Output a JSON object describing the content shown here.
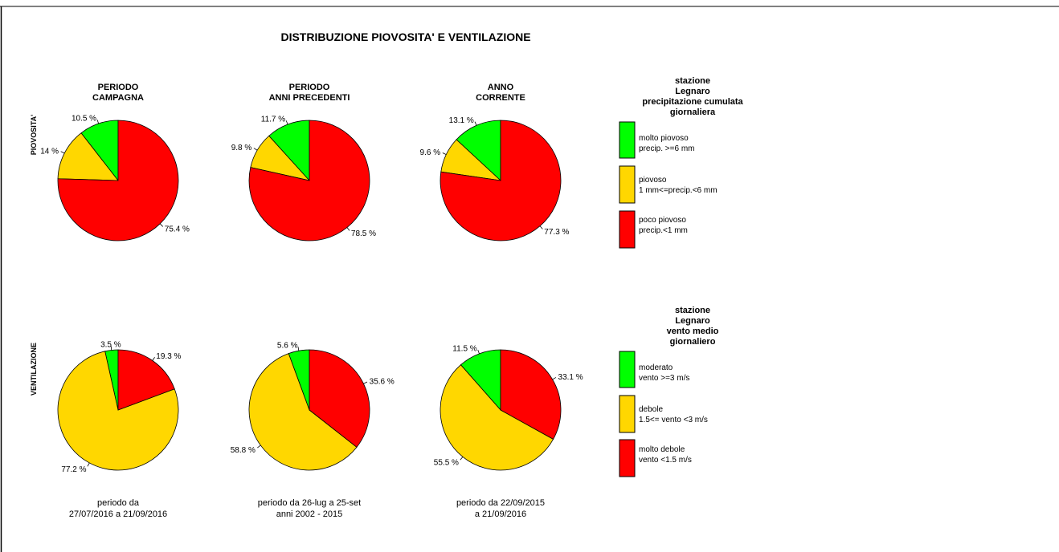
{
  "title": "DISTRIBUZIONE PIOVOSITA' E VENTILAZIONE",
  "columns": [
    {
      "line1": "PERIODO",
      "line2": "CAMPAGNA"
    },
    {
      "line1": "PERIODO",
      "line2": "ANNI PRECEDENTI"
    },
    {
      "line1": "ANNO",
      "line2": "CORRENTE"
    }
  ],
  "row_labels": {
    "rain": "PIOVOSITA'",
    "wind": "VENTILAZIONE"
  },
  "footers": [
    {
      "line1": "periodo da",
      "line2": "27/07/2016  a  21/09/2016"
    },
    {
      "line1": "periodo da  26-lug  a  25-set",
      "line2": "anni 2002 - 2015"
    },
    {
      "line1": "periodo da  22/09/2015",
      "line2": "a  21/09/2016"
    }
  ],
  "legend_rain": {
    "title_lines": [
      "stazione",
      "Legnaro",
      "precipitazione cumulata",
      "giornaliera"
    ],
    "items": [
      {
        "line1": "molto piovoso",
        "line2": "precip. >=6 mm",
        "color": "#00ff00"
      },
      {
        "line1": "piovoso",
        "line2": "1 mm<=precip.<6 mm",
        "color": "#ffd700"
      },
      {
        "line1": "poco piovoso",
        "line2": "precip.<1 mm",
        "color": "#ff0000"
      }
    ]
  },
  "legend_wind": {
    "title_lines": [
      "stazione",
      "Legnaro",
      "vento medio",
      "giornaliero"
    ],
    "items": [
      {
        "line1": "moderato",
        "line2": "vento >=3 m/s",
        "color": "#00ff00"
      },
      {
        "line1": "debole",
        "line2": "1.5<= vento <3 m/s",
        "color": "#ffd700"
      },
      {
        "line1": "molto debole",
        "line2": "vento <1.5 m/s",
        "color": "#ff0000"
      }
    ]
  },
  "chart_data": [
    {
      "type": "pie",
      "group": "piovosita",
      "column": "PERIODO CAMPAGNA",
      "categories": [
        "molto piovoso",
        "piovoso",
        "poco piovoso"
      ],
      "values": [
        10.5,
        14,
        75.4
      ],
      "labels": [
        "10.5 %",
        "14 %",
        "75.4 %"
      ],
      "colors": [
        "#00ff00",
        "#ffd700",
        "#ff0000"
      ]
    },
    {
      "type": "pie",
      "group": "piovosita",
      "column": "PERIODO ANNI PRECEDENTI",
      "categories": [
        "molto piovoso",
        "piovoso",
        "poco piovoso"
      ],
      "values": [
        11.7,
        9.8,
        78.5
      ],
      "labels": [
        "11.7 %",
        "9.8 %",
        "78.5 %"
      ],
      "colors": [
        "#00ff00",
        "#ffd700",
        "#ff0000"
      ]
    },
    {
      "type": "pie",
      "group": "piovosita",
      "column": "ANNO CORRENTE",
      "categories": [
        "molto piovoso",
        "piovoso",
        "poco piovoso"
      ],
      "values": [
        13.1,
        9.6,
        77.3
      ],
      "labels": [
        "13.1 %",
        "9.6 %",
        "77.3 %"
      ],
      "colors": [
        "#00ff00",
        "#ffd700",
        "#ff0000"
      ]
    },
    {
      "type": "pie",
      "group": "ventilazione",
      "column": "PERIODO CAMPAGNA",
      "categories": [
        "moderato",
        "debole",
        "molto debole"
      ],
      "values": [
        3.5,
        77.2,
        19.3
      ],
      "labels": [
        "3.5 %",
        "77.2 %",
        "19.3 %"
      ],
      "colors": [
        "#00ff00",
        "#ffd700",
        "#ff0000"
      ]
    },
    {
      "type": "pie",
      "group": "ventilazione",
      "column": "PERIODO ANNI PRECEDENTI",
      "categories": [
        "moderato",
        "debole",
        "molto debole"
      ],
      "values": [
        5.6,
        58.8,
        35.6
      ],
      "labels": [
        "5.6 %",
        "58.8 %",
        "35.6 %"
      ],
      "colors": [
        "#00ff00",
        "#ffd700",
        "#ff0000"
      ]
    },
    {
      "type": "pie",
      "group": "ventilazione",
      "column": "ANNO CORRENTE",
      "categories": [
        "moderato",
        "debole",
        "molto debole"
      ],
      "values": [
        11.5,
        55.5,
        33.1
      ],
      "labels": [
        "11.5 %",
        "55.5 %",
        "33.1 %"
      ],
      "colors": [
        "#00ff00",
        "#ffd700",
        "#ff0000"
      ]
    }
  ]
}
